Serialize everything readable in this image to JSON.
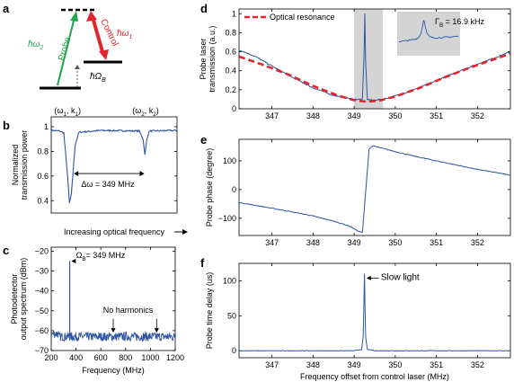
{
  "colors": {
    "signal": "#2f55a4",
    "resonance": "#e3242b",
    "probe": "#22a24a",
    "control": "#e3242b",
    "inset_shade": "#d4d4d4",
    "axis": "#000000"
  },
  "panel_letters": {
    "a": "a",
    "b": "b",
    "c": "c",
    "d": "d",
    "e": "e",
    "f": "f"
  },
  "panel_a": {
    "probe_label": "Probe",
    "probe_energy": "ħω",
    "probe_sub": "2",
    "control_label": "Control",
    "control_energy": "ħω",
    "control_sub": "1",
    "omega_b": "ħΩ",
    "omega_b_sub": "B"
  },
  "chart_data": [
    {
      "id": "b",
      "type": "line",
      "title": "",
      "xlabel": "Increasing optical frequency",
      "ylabel": "Normalized transmission power",
      "ylabel_lines": [
        "Normalized",
        "transmission power"
      ],
      "ylim": [
        0.3,
        1.08
      ],
      "yticks": [
        0.4,
        0.6,
        0.8,
        1
      ],
      "ytick_labels": [
        "0.4",
        "0.6",
        "0.8",
        "1"
      ],
      "xlim": [
        0,
        1
      ],
      "x_ticks_shown": false,
      "series": [
        {
          "values": [
            [
              0.0,
              0.97
            ],
            [
              0.07,
              0.965
            ],
            [
              0.1,
              0.95
            ],
            [
              0.13,
              0.6
            ],
            [
              0.145,
              0.38
            ],
            [
              0.16,
              0.45
            ],
            [
              0.19,
              0.85
            ],
            [
              0.22,
              0.955
            ],
            [
              0.4,
              0.97
            ],
            [
              0.7,
              0.965
            ],
            [
              0.73,
              0.9
            ],
            [
              0.745,
              0.77
            ],
            [
              0.76,
              0.9
            ],
            [
              0.78,
              0.965
            ],
            [
              1.0,
              0.97
            ]
          ]
        }
      ],
      "annotations": [
        {
          "label": "(ω",
          "sub": "1",
          "after": ", k",
          "sub2": "1",
          "tail": ")"
        },
        {
          "label": "(ω",
          "sub": "2",
          "after": ", k",
          "sub2": "2",
          "tail": ")"
        },
        {
          "text": "Δω = 349 MHz"
        }
      ]
    },
    {
      "id": "c",
      "type": "line",
      "title": "",
      "xlabel": "Frequency (MHz)",
      "ylabel": "Photodetector output spectrum (dBm)",
      "ylabel_lines": [
        "Photodetector",
        "output spectrum (dBm)"
      ],
      "xlim": [
        200,
        1200
      ],
      "ylim": [
        -70,
        -18
      ],
      "xticks": [
        200,
        400,
        600,
        800,
        1000,
        1200
      ],
      "xtick_labels": [
        "200",
        "400",
        "600",
        "800",
        "1000",
        "1200"
      ],
      "yticks": [
        -20,
        -30,
        -40,
        -50,
        -60,
        -70
      ],
      "ytick_labels": [
        "−20",
        "−30",
        "−40",
        "−50",
        "−60",
        "−70"
      ],
      "noise_floor": -63,
      "peak": {
        "x": 349,
        "y": -25
      },
      "annotations": [
        {
          "text": "Ω",
          "sub": "B",
          "tail": "= 349 MHz"
        },
        {
          "text": "No harmonics"
        }
      ]
    },
    {
      "id": "d",
      "type": "line",
      "title": "",
      "xlabel": "",
      "ylabel": "Probe laser transmission (a.u.)",
      "ylabel_lines": [
        "Probe laser",
        "transmission (a.u.)"
      ],
      "xlim": [
        346.2,
        352.8
      ],
      "ylim": [
        0,
        1.05
      ],
      "xticks": [
        347,
        348,
        349,
        350,
        351,
        352
      ],
      "xtick_labels": [
        "347",
        "348",
        "349",
        "350",
        "351",
        "352"
      ],
      "yticks": [
        0,
        0.2,
        0.4,
        0.6,
        0.8,
        1
      ],
      "ytick_labels": [
        "0",
        "0.2",
        "0.4",
        "0.6",
        "0.8",
        "1"
      ],
      "shaded_region": [
        349.0,
        349.7
      ],
      "series": [
        {
          "name": "Optical resonance",
          "style": "dashed",
          "x": [
            346.2,
            346.8,
            347.4,
            348.0,
            348.6,
            349.0,
            349.3,
            349.6,
            350.0,
            350.6,
            351.2,
            351.8,
            352.4,
            352.8
          ],
          "y": [
            0.55,
            0.46,
            0.36,
            0.24,
            0.14,
            0.09,
            0.075,
            0.085,
            0.13,
            0.22,
            0.33,
            0.43,
            0.52,
            0.58
          ]
        },
        {
          "name": "",
          "style": "solid",
          "x": [
            346.2,
            346.6,
            347.0,
            347.5,
            348.0,
            348.5,
            349.0,
            349.2,
            349.24,
            349.26,
            349.28,
            349.32,
            349.45,
            349.7,
            350.2,
            350.8,
            351.4,
            352.0,
            352.5,
            352.8
          ],
          "y": [
            0.62,
            0.55,
            0.45,
            0.33,
            0.22,
            0.14,
            0.1,
            0.1,
            0.55,
            1.0,
            0.5,
            0.1,
            0.09,
            0.1,
            0.16,
            0.26,
            0.37,
            0.47,
            0.55,
            0.6
          ]
        }
      ],
      "legend": {
        "placement": "top-left",
        "entries": [
          "Optical resonance"
        ]
      },
      "inset": {
        "label": "Γ",
        "sub": "B",
        "tail": " = 16.9 kHz"
      }
    },
    {
      "id": "e",
      "type": "line",
      "title": "",
      "xlabel": "",
      "ylabel": "Probe phase (degree)",
      "xlim": [
        346.2,
        352.8
      ],
      "ylim": [
        -160,
        175
      ],
      "xticks": [
        347,
        348,
        349,
        350,
        351,
        352
      ],
      "xtick_labels": [
        "347",
        "348",
        "349",
        "350",
        "351",
        "352"
      ],
      "yticks": [
        100,
        0,
        -100
      ],
      "ytick_labels": [
        "100",
        "0",
        "−100"
      ],
      "series": [
        {
          "x": [
            346.2,
            346.6,
            347.0,
            347.5,
            348.0,
            348.5,
            348.9,
            349.1,
            349.2,
            349.28,
            349.36,
            349.45,
            349.6,
            350.0,
            350.5,
            351.0,
            351.5,
            352.0,
            352.5,
            352.8
          ],
          "y": [
            -45,
            -55,
            -65,
            -78,
            -92,
            -110,
            -128,
            -145,
            -150,
            -10,
            140,
            152,
            147,
            132,
            115,
            100,
            85,
            70,
            58,
            50
          ]
        }
      ]
    },
    {
      "id": "f",
      "type": "line",
      "title": "",
      "xlabel": "Frequency offset from control laser (MHz)",
      "ylabel": "Probe time delay (us)",
      "xlim": [
        346.2,
        352.8
      ],
      "ylim": [
        -10,
        125
      ],
      "xticks": [
        347,
        348,
        349,
        350,
        351,
        352
      ],
      "xtick_labels": [
        "347",
        "348",
        "349",
        "350",
        "351",
        "352"
      ],
      "yticks": [
        0,
        50,
        100
      ],
      "ytick_labels": [
        "0",
        "50",
        "100"
      ],
      "series": [
        {
          "x": [
            346.2,
            349.0,
            349.18,
            349.22,
            349.25,
            349.28,
            349.32,
            349.5,
            352.8
          ],
          "y": [
            0,
            0,
            2,
            20,
            110,
            20,
            2,
            0,
            0
          ]
        }
      ],
      "annotations": [
        {
          "text": "Slow light"
        }
      ]
    }
  ]
}
